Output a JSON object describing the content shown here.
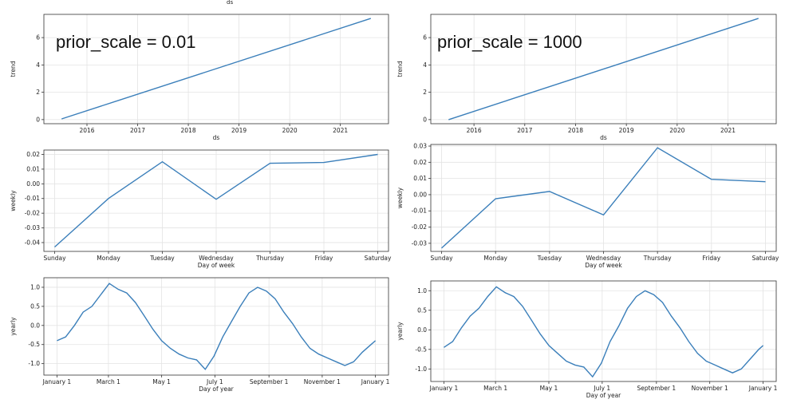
{
  "header_label": "ds",
  "panels": [
    {
      "title": "prior_scale = 0.01"
    },
    {
      "title": "prior_scale = 1000"
    }
  ],
  "chart_data": [
    {
      "type": "line",
      "panel": "left",
      "row": "trend",
      "xlabel": "ds",
      "ylabel": "trend",
      "x": [
        2015.5,
        2021.6
      ],
      "y": [
        0.05,
        7.4
      ],
      "xlim": [
        2015.15,
        2021.95
      ],
      "ylim": [
        -0.3,
        7.7
      ],
      "xticks": [
        2016,
        2017,
        2018,
        2019,
        2020,
        2021
      ],
      "yticks": [
        0,
        2,
        4,
        6
      ],
      "grid": true,
      "color": "#3b7fba"
    },
    {
      "type": "line",
      "panel": "left",
      "row": "weekly",
      "xlabel": "Day of week",
      "ylabel": "weekly",
      "categories": [
        "Sunday",
        "Monday",
        "Tuesday",
        "Wednesday",
        "Thursday",
        "Friday",
        "Saturday"
      ],
      "values": [
        -0.043,
        -0.01,
        0.015,
        -0.0105,
        0.014,
        0.0145,
        0.02
      ],
      "ylim": [
        -0.046,
        0.023
      ],
      "yticks": [
        -0.04,
        -0.03,
        -0.02,
        -0.01,
        0.0,
        0.01,
        0.02
      ],
      "ytick_labels": [
        "-0.04",
        "-0.03",
        "-0.02",
        "-0.01",
        "0.00",
        "0.01",
        "0.02"
      ],
      "grid": true,
      "color": "#3b7fba"
    },
    {
      "type": "line",
      "panel": "left",
      "row": "yearly",
      "xlabel": "Day of year",
      "ylabel": "yearly",
      "x": [
        0,
        10,
        20,
        30,
        40,
        50,
        60,
        70,
        80,
        90,
        100,
        110,
        120,
        130,
        140,
        150,
        160,
        170,
        180,
        190,
        200,
        210,
        220,
        230,
        240,
        250,
        260,
        270,
        280,
        290,
        300,
        310,
        320,
        330,
        340,
        350,
        360,
        365
      ],
      "y": [
        -0.4,
        -0.3,
        0.0,
        0.35,
        0.5,
        0.8,
        1.1,
        0.95,
        0.85,
        0.6,
        0.25,
        -0.1,
        -0.4,
        -0.6,
        -0.75,
        -0.85,
        -0.9,
        -1.15,
        -0.8,
        -0.3,
        0.1,
        0.5,
        0.85,
        1.0,
        0.9,
        0.7,
        0.35,
        0.05,
        -0.3,
        -0.6,
        -0.75,
        -0.85,
        -0.95,
        -1.05,
        -0.95,
        -0.7,
        -0.5,
        -0.4
      ],
      "xlim": [
        -15,
        380
      ],
      "ylim": [
        -1.3,
        1.25
      ],
      "xticks": [
        0,
        59,
        120,
        181,
        243,
        304,
        365
      ],
      "xtick_labels": [
        "January 1",
        "March 1",
        "May 1",
        "July 1",
        "September 1",
        "November 1",
        "January 1"
      ],
      "yticks": [
        -1.0,
        -0.5,
        0.0,
        0.5,
        1.0
      ],
      "ytick_labels": [
        "-1.0",
        "-0.5",
        "0.0",
        "0.5",
        "1.0"
      ],
      "grid": true,
      "color": "#3b7fba"
    },
    {
      "type": "line",
      "panel": "right",
      "row": "trend",
      "xlabel": "ds",
      "ylabel": "trend",
      "x": [
        2015.5,
        2021.6
      ],
      "y": [
        0.0,
        7.4
      ],
      "xlim": [
        2015.15,
        2021.95
      ],
      "ylim": [
        -0.3,
        7.7
      ],
      "xticks": [
        2016,
        2017,
        2018,
        2019,
        2020,
        2021
      ],
      "yticks": [
        0,
        2,
        4,
        6
      ],
      "grid": true,
      "color": "#3b7fba"
    },
    {
      "type": "line",
      "panel": "right",
      "row": "weekly",
      "xlabel": "Day of week",
      "ylabel": "weekly",
      "categories": [
        "Sunday",
        "Monday",
        "Tuesday",
        "Wednesday",
        "Thursday",
        "Friday",
        "Saturday"
      ],
      "values": [
        -0.033,
        -0.0025,
        0.002,
        -0.0125,
        0.029,
        0.0095,
        0.008
      ],
      "ylim": [
        -0.035,
        0.031
      ],
      "yticks": [
        -0.03,
        -0.02,
        -0.01,
        0.0,
        0.01,
        0.02,
        0.03
      ],
      "ytick_labels": [
        "-0.03",
        "-0.02",
        "-0.01",
        "0.00",
        "0.01",
        "0.02",
        "0.03"
      ],
      "grid": true,
      "color": "#3b7fba"
    },
    {
      "type": "line",
      "panel": "right",
      "row": "yearly",
      "xlabel": "Day of year",
      "ylabel": "yearly",
      "x": [
        0,
        10,
        20,
        30,
        40,
        50,
        60,
        70,
        80,
        90,
        100,
        110,
        120,
        130,
        140,
        150,
        160,
        170,
        180,
        190,
        200,
        210,
        220,
        230,
        240,
        250,
        260,
        270,
        280,
        290,
        300,
        310,
        320,
        330,
        340,
        350,
        360,
        365
      ],
      "y": [
        -0.45,
        -0.3,
        0.05,
        0.35,
        0.55,
        0.85,
        1.1,
        0.95,
        0.85,
        0.6,
        0.25,
        -0.1,
        -0.4,
        -0.6,
        -0.8,
        -0.9,
        -0.95,
        -1.2,
        -0.85,
        -0.3,
        0.1,
        0.55,
        0.85,
        1.0,
        0.9,
        0.7,
        0.35,
        0.05,
        -0.3,
        -0.6,
        -0.8,
        -0.9,
        -1.0,
        -1.1,
        -1.0,
        -0.75,
        -0.5,
        -0.4
      ],
      "xlim": [
        -15,
        380
      ],
      "ylim": [
        -1.32,
        1.25
      ],
      "xticks": [
        0,
        59,
        120,
        181,
        243,
        304,
        365
      ],
      "xtick_labels": [
        "January 1",
        "March 1",
        "May 1",
        "July 1",
        "September 1",
        "November 1",
        "January 1"
      ],
      "yticks": [
        -1.0,
        -0.5,
        0.0,
        0.5,
        1.0
      ],
      "ytick_labels": [
        "-1.0",
        "-0.5",
        "0.0",
        "0.5",
        "1.0"
      ],
      "grid": true,
      "color": "#3b7fba"
    }
  ]
}
